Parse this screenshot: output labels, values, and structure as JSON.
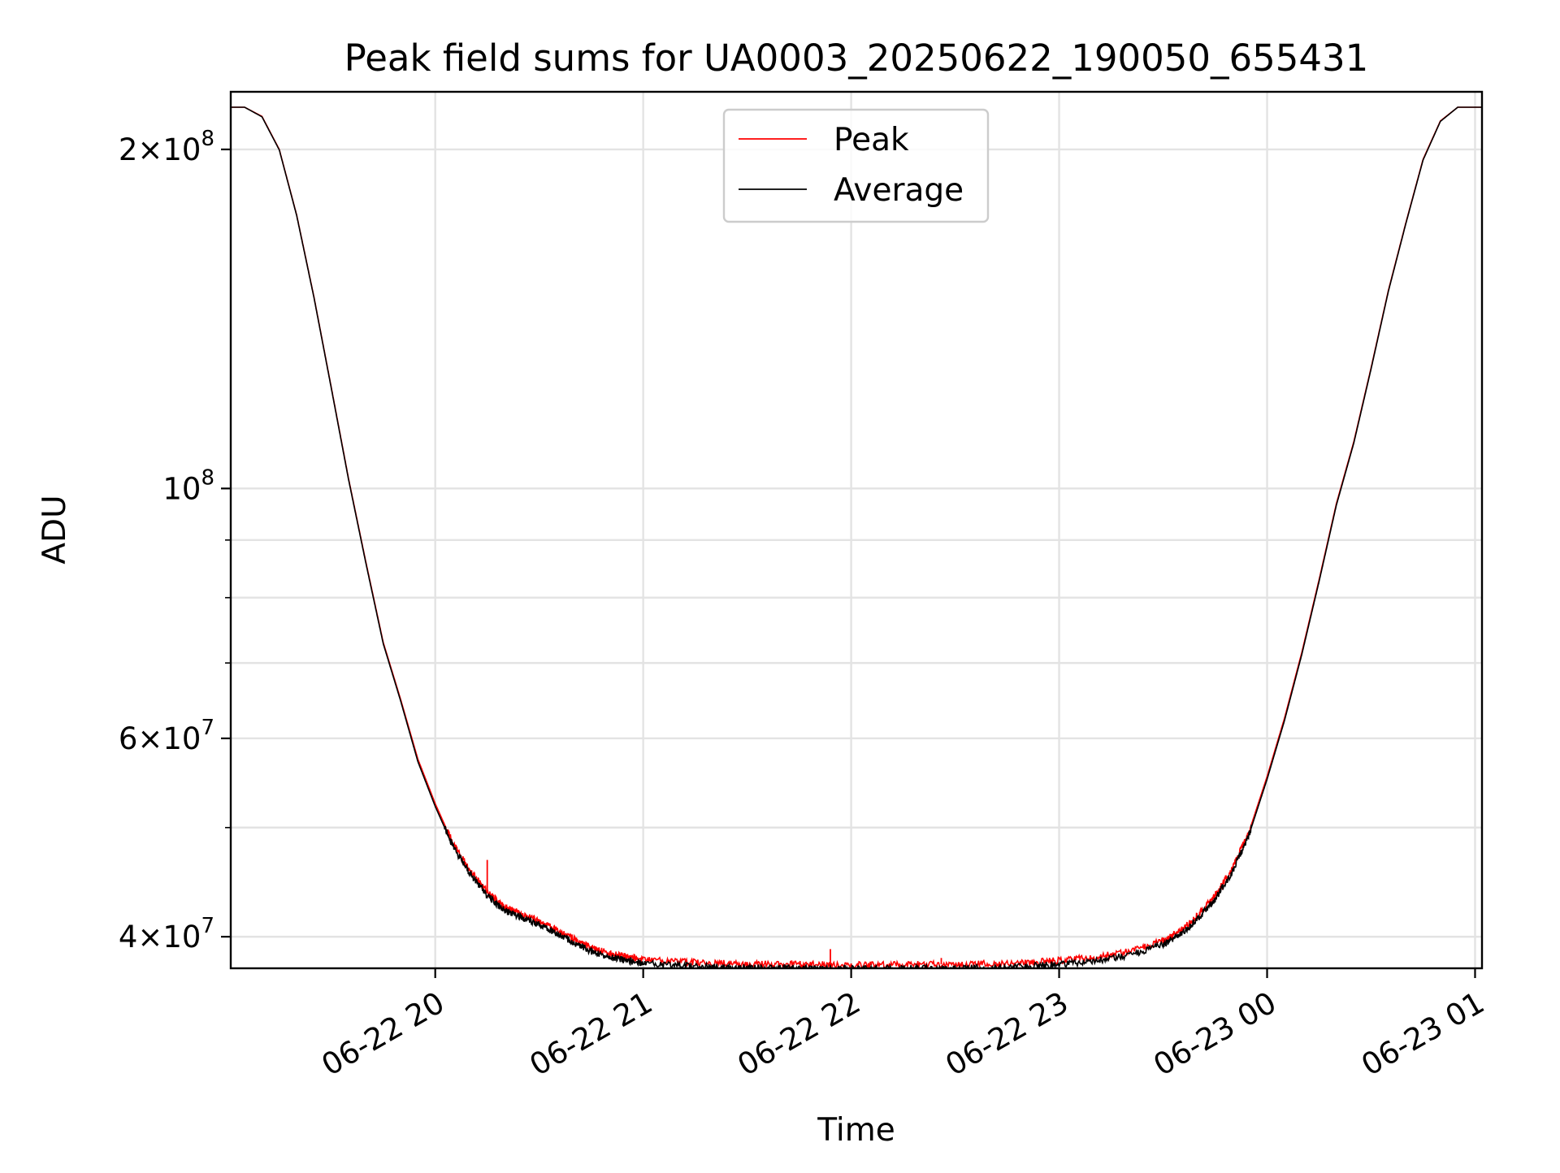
{
  "chart_data": {
    "type": "line",
    "title": "Peak field sums for UA0003_20250622_190050_655431",
    "xlabel": "Time",
    "ylabel": "ADU",
    "y_scale": "log",
    "ylim": [
      37500000,
      225000000
    ],
    "xlim": [
      "2025-06-22 19:01",
      "2025-06-23 01:02"
    ],
    "x_ticks": [
      {
        "value": "2025-06-22 20:00",
        "label": "06-22 20"
      },
      {
        "value": "2025-06-22 21:00",
        "label": "06-22 21"
      },
      {
        "value": "2025-06-22 22:00",
        "label": "06-22 22"
      },
      {
        "value": "2025-06-22 23:00",
        "label": "06-22 23"
      },
      {
        "value": "2025-06-23 00:00",
        "label": "06-23 00"
      },
      {
        "value": "2025-06-23 01:00",
        "label": "06-23 01"
      }
    ],
    "y_major_ticks": [
      {
        "value": 40000000,
        "mantissa": "4",
        "base": "10",
        "exponent": "7"
      },
      {
        "value": 60000000,
        "mantissa": "6",
        "base": "10",
        "exponent": "7"
      },
      {
        "value": 100000000,
        "mantissa": "",
        "base": "10",
        "exponent": "8"
      },
      {
        "value": 200000000,
        "mantissa": "2",
        "base": "10",
        "exponent": "8"
      }
    ],
    "y_minor_gridlines": [
      50000000,
      70000000,
      80000000,
      90000000
    ],
    "grid": true,
    "legend_position": "upper-center",
    "series": [
      {
        "name": "Peak",
        "color": "#ff0000",
        "x": [
          "2025-06-22 19:01",
          "2025-06-22 19:05",
          "2025-06-22 19:10",
          "2025-06-22 19:15",
          "2025-06-22 19:20",
          "2025-06-22 19:25",
          "2025-06-22 19:30",
          "2025-06-22 19:35",
          "2025-06-22 19:40",
          "2025-06-22 19:45",
          "2025-06-22 19:50",
          "2025-06-22 19:55",
          "2025-06-22 20:00",
          "2025-06-22 20:05",
          "2025-06-22 20:10",
          "2025-06-22 20:15",
          "2025-06-22 20:20",
          "2025-06-22 20:25",
          "2025-06-22 20:30",
          "2025-06-22 20:35",
          "2025-06-22 20:40",
          "2025-06-22 20:45",
          "2025-06-22 20:50",
          "2025-06-22 20:55",
          "2025-06-22 21:00",
          "2025-06-22 21:10",
          "2025-06-22 21:20",
          "2025-06-22 21:30",
          "2025-06-22 21:40",
          "2025-06-22 21:50",
          "2025-06-22 22:00",
          "2025-06-22 22:10",
          "2025-06-22 22:20",
          "2025-06-22 22:30",
          "2025-06-22 22:40",
          "2025-06-22 22:50",
          "2025-06-22 23:00",
          "2025-06-22 23:10",
          "2025-06-22 23:20",
          "2025-06-22 23:30",
          "2025-06-22 23:35",
          "2025-06-22 23:40",
          "2025-06-22 23:45",
          "2025-06-22 23:50",
          "2025-06-22 23:55",
          "2025-06-23 00:00",
          "2025-06-23 00:05",
          "2025-06-23 00:10",
          "2025-06-23 00:15",
          "2025-06-23 00:20",
          "2025-06-23 00:25",
          "2025-06-23 00:30",
          "2025-06-23 00:35",
          "2025-06-23 00:40",
          "2025-06-23 00:45",
          "2025-06-23 00:50",
          "2025-06-23 00:55",
          "2025-06-23 01:00",
          "2025-06-23 01:02"
        ],
        "values": [
          218000000,
          218000000,
          214000000,
          200000000,
          175000000,
          148000000,
          123000000,
          102000000,
          86000000,
          73000000,
          65000000,
          57500000,
          52500000,
          48500000,
          45800000,
          43800000,
          42500000,
          41900000,
          41300000,
          40600000,
          39800000,
          39100000,
          38700000,
          38400000,
          38200000,
          38000000,
          37900000,
          37850000,
          37800000,
          37800000,
          37750000,
          37750000,
          37800000,
          37800000,
          37850000,
          37950000,
          38100000,
          38350000,
          38800000,
          39700000,
          40500000,
          41800000,
          43500000,
          46000000,
          49800000,
          55500000,
          62500000,
          71500000,
          83000000,
          97000000,
          110000000,
          128000000,
          150000000,
          172000000,
          196000000,
          212000000,
          218000000,
          218000000,
          218000000
        ]
      },
      {
        "name": "Average",
        "color": "#000000",
        "x": [
          "2025-06-22 19:01",
          "2025-06-22 19:05",
          "2025-06-22 19:10",
          "2025-06-22 19:15",
          "2025-06-22 19:20",
          "2025-06-22 19:25",
          "2025-06-22 19:30",
          "2025-06-22 19:35",
          "2025-06-22 19:40",
          "2025-06-22 19:45",
          "2025-06-22 19:50",
          "2025-06-22 19:55",
          "2025-06-22 20:00",
          "2025-06-22 20:05",
          "2025-06-22 20:10",
          "2025-06-22 20:15",
          "2025-06-22 20:20",
          "2025-06-22 20:25",
          "2025-06-22 20:30",
          "2025-06-22 20:35",
          "2025-06-22 20:40",
          "2025-06-22 20:45",
          "2025-06-22 20:50",
          "2025-06-22 20:55",
          "2025-06-22 21:00",
          "2025-06-22 21:10",
          "2025-06-22 21:20",
          "2025-06-22 21:30",
          "2025-06-22 21:40",
          "2025-06-22 21:50",
          "2025-06-22 22:00",
          "2025-06-22 22:10",
          "2025-06-22 22:20",
          "2025-06-22 22:30",
          "2025-06-22 22:40",
          "2025-06-22 22:50",
          "2025-06-22 23:00",
          "2025-06-22 23:10",
          "2025-06-22 23:20",
          "2025-06-22 23:30",
          "2025-06-22 23:35",
          "2025-06-22 23:40",
          "2025-06-22 23:45",
          "2025-06-22 23:50",
          "2025-06-22 23:55",
          "2025-06-23 00:00",
          "2025-06-23 00:05",
          "2025-06-23 00:10",
          "2025-06-23 00:15",
          "2025-06-23 00:20",
          "2025-06-23 00:25",
          "2025-06-23 00:30",
          "2025-06-23 00:35",
          "2025-06-23 00:40",
          "2025-06-23 00:45",
          "2025-06-23 00:50",
          "2025-06-23 00:55",
          "2025-06-23 01:00",
          "2025-06-23 01:02"
        ],
        "values": [
          218000000,
          218000000,
          213800000,
          199800000,
          174800000,
          147800000,
          122800000,
          101800000,
          85800000,
          72800000,
          64800000,
          57200000,
          52200000,
          48200000,
          45500000,
          43500000,
          42200000,
          41600000,
          41000000,
          40300000,
          39500000,
          38800000,
          38400000,
          38100000,
          37900000,
          37700000,
          37600000,
          37550000,
          37500000,
          37500000,
          37450000,
          37450000,
          37500000,
          37500000,
          37550000,
          37650000,
          37800000,
          38050000,
          38500000,
          39400000,
          40200000,
          41500000,
          43200000,
          45700000,
          49500000,
          55200000,
          62200000,
          71200000,
          82700000,
          96700000,
          109700000,
          127700000,
          149700000,
          171700000,
          195700000,
          211800000,
          218000000,
          218000000,
          218000000
        ]
      }
    ],
    "peak_spikes": [
      {
        "x": "2025-06-22 20:15",
        "value": 46800000
      },
      {
        "x": "2025-06-22 21:54",
        "value": 39000000
      },
      {
        "x": "2025-06-22 22:26",
        "value": 38300000
      }
    ]
  }
}
